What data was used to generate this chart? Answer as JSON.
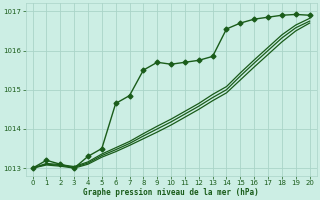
{
  "title": "Graphe pression niveau de la mer (hPa)",
  "background_color": "#cceee4",
  "grid_color": "#aad4c8",
  "line_color": "#1a5c1a",
  "xlim": [
    -0.5,
    20.5
  ],
  "ylim": [
    1012.8,
    1017.2
  ],
  "xticks": [
    0,
    1,
    2,
    3,
    4,
    5,
    6,
    7,
    8,
    9,
    10,
    11,
    12,
    13,
    14,
    15,
    16,
    17,
    18,
    19,
    20
  ],
  "yticks": [
    1013,
    1014,
    1015,
    1016,
    1017
  ],
  "series": [
    {
      "x": [
        0,
        1,
        2,
        3,
        4,
        5,
        6,
        7,
        8,
        9,
        10,
        11,
        12,
        13,
        14,
        15,
        16,
        17,
        18,
        19,
        20
      ],
      "y": [
        1013.0,
        1013.2,
        1013.1,
        1013.0,
        1013.3,
        1013.5,
        1014.65,
        1014.85,
        1015.5,
        1015.7,
        1015.65,
        1015.7,
        1015.75,
        1015.85,
        1016.55,
        1016.7,
        1016.8,
        1016.85,
        1016.9,
        1016.92,
        1016.9
      ],
      "marker": "D",
      "marker_size": 2.5,
      "linewidth": 1.0
    },
    {
      "x": [
        0,
        1,
        2,
        3,
        4,
        5,
        6,
        7,
        8,
        9,
        10,
        11,
        12,
        13,
        14,
        15,
        16,
        17,
        18,
        19,
        20
      ],
      "y": [
        1013.0,
        1013.08,
        1013.05,
        1013.0,
        1013.1,
        1013.28,
        1013.42,
        1013.58,
        1013.75,
        1013.92,
        1014.1,
        1014.3,
        1014.5,
        1014.72,
        1014.92,
        1015.25,
        1015.58,
        1015.9,
        1016.22,
        1016.5,
        1016.7
      ],
      "marker": null,
      "linewidth": 0.9
    },
    {
      "x": [
        0,
        1,
        2,
        3,
        4,
        5,
        6,
        7,
        8,
        9,
        10,
        11,
        12,
        13,
        14,
        15,
        16,
        17,
        18,
        19,
        20
      ],
      "y": [
        1013.0,
        1013.1,
        1013.07,
        1013.02,
        1013.13,
        1013.32,
        1013.47,
        1013.63,
        1013.82,
        1014.0,
        1014.18,
        1014.38,
        1014.58,
        1014.8,
        1015.0,
        1015.35,
        1015.68,
        1016.0,
        1016.32,
        1016.58,
        1016.75
      ],
      "marker": null,
      "linewidth": 0.9
    },
    {
      "x": [
        0,
        1,
        2,
        3,
        4,
        5,
        6,
        7,
        8,
        9,
        10,
        11,
        12,
        13,
        14,
        15,
        16,
        17,
        18,
        19,
        20
      ],
      "y": [
        1013.0,
        1013.12,
        1013.09,
        1013.04,
        1013.16,
        1013.36,
        1013.52,
        1013.68,
        1013.88,
        1014.07,
        1014.25,
        1014.45,
        1014.65,
        1014.88,
        1015.08,
        1015.43,
        1015.76,
        1016.08,
        1016.4,
        1016.65,
        1016.82
      ],
      "marker": null,
      "linewidth": 0.9
    }
  ]
}
